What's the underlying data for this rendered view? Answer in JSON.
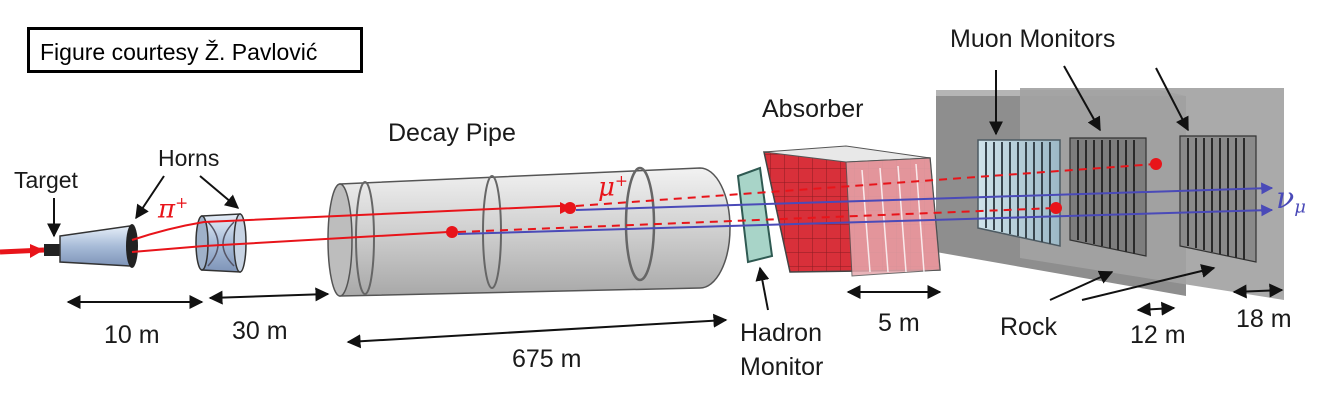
{
  "credit": "Figure courtesy Ž. Pavlović",
  "labels": {
    "target": "Target",
    "horns": "Horns",
    "decay_pipe": "Decay Pipe",
    "absorber": "Absorber",
    "muon_monitors": "Muon Monitors",
    "hadron_monitor_line1": "Hadron",
    "hadron_monitor_line2": "Monitor",
    "rock": "Rock"
  },
  "particles": {
    "pion": "π",
    "pion_charge": "+",
    "muon": "μ",
    "muon_charge": "+",
    "neutrino": "ν",
    "neutrino_flavor": "μ"
  },
  "dimensions": {
    "target_to_horn": "10 m",
    "horns": "30 m",
    "decay_pipe": "675 m",
    "absorber": "5 m",
    "rock_gap_1": "12 m",
    "rock_gap_2": "18 m"
  },
  "colors": {
    "beam_red": "#e8141a",
    "neutrino_blue": "#4a4ab8",
    "pipe_gray": "#d6d6d6",
    "absorber_red": "#d8303a",
    "rock_gray": "#9a9a9a"
  }
}
